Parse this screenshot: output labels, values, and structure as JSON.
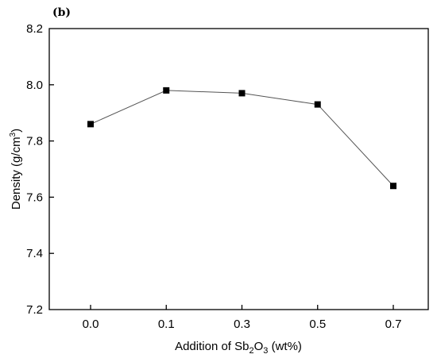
{
  "panel_label": "(b)",
  "chart_data": {
    "type": "line",
    "categories": [
      "0.0",
      "0.1",
      "0.3",
      "0.5",
      "0.7"
    ],
    "series": [
      {
        "values": [
          7.86,
          7.98,
          7.97,
          7.93,
          7.64
        ]
      }
    ],
    "xlabel": {
      "pre": "Addition of Sb",
      "sub1": "2",
      "mid": "O",
      "sub2": "3",
      "post": " (wt%)"
    },
    "ylabel": {
      "pre": "Density (g/cm",
      "sup": "3",
      "post": ")"
    },
    "ylim": [
      7.2,
      8.2
    ],
    "yticks": [
      "7.2",
      "7.4",
      "7.6",
      "7.8",
      "8.0",
      "8.2"
    ],
    "grid": false,
    "marker": "square",
    "line_color": "#555555",
    "marker_color": "#000000"
  }
}
